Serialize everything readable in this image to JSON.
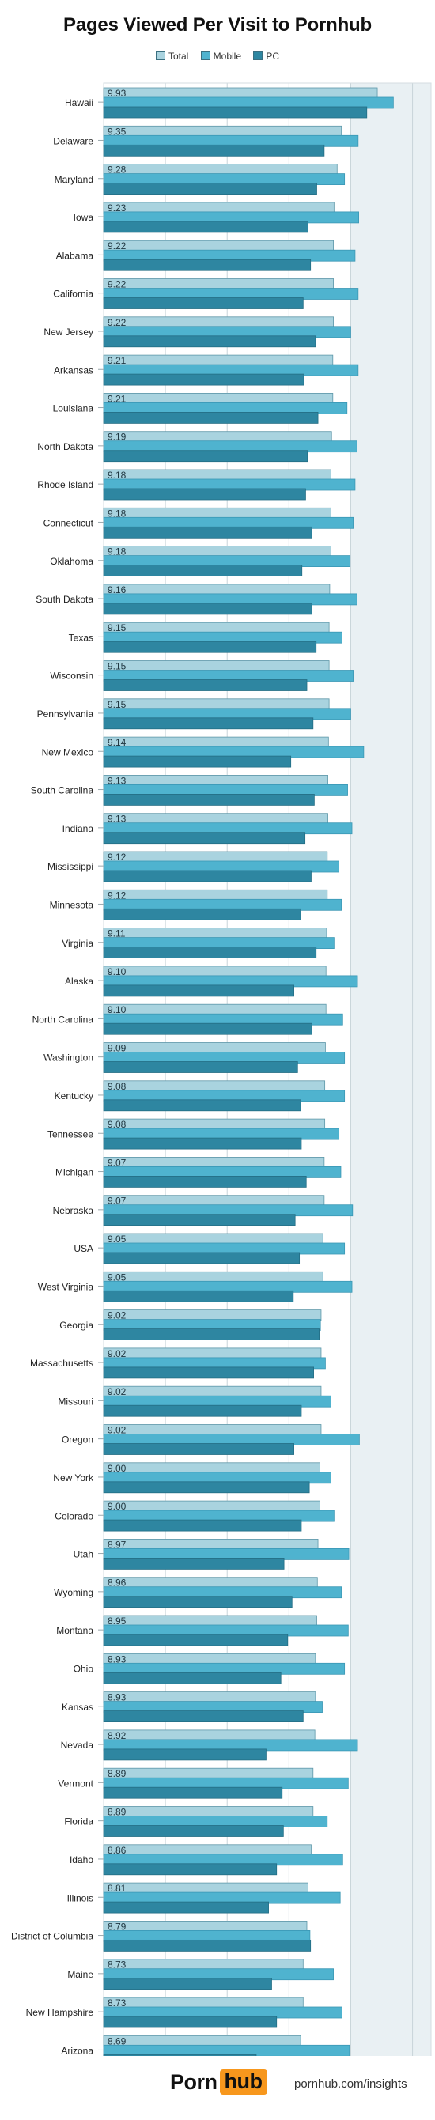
{
  "chart_data": {
    "type": "bar",
    "title": "Pages Viewed Per Visit to Pornhub",
    "orientation": "horizontal",
    "legend_position": "top-center",
    "grid": true,
    "series": [
      {
        "name": "Total",
        "color": "#a9d3df",
        "values": [
          9.93,
          9.35,
          9.28,
          9.23,
          9.22,
          9.22,
          9.22,
          9.21,
          9.21,
          9.19,
          9.18,
          9.18,
          9.18,
          9.16,
          9.15,
          9.15,
          9.15,
          9.14,
          9.13,
          9.13,
          9.12,
          9.12,
          9.11,
          9.1,
          9.1,
          9.09,
          9.08,
          9.08,
          9.07,
          9.07,
          9.05,
          9.05,
          9.02,
          9.02,
          9.02,
          9.02,
          9.0,
          9.0,
          8.97,
          8.96,
          8.95,
          8.93,
          8.93,
          8.92,
          8.89,
          8.89,
          8.86,
          8.81,
          8.79,
          8.73,
          8.73,
          8.69
        ]
      },
      {
        "name": "Mobile",
        "color": "#4fb3cf",
        "values": [
          10.19,
          9.62,
          9.4,
          9.63,
          9.57,
          9.62,
          9.5,
          9.62,
          9.44,
          9.6,
          9.57,
          9.54,
          9.49,
          9.6,
          9.36,
          9.54,
          9.5,
          9.71,
          9.45,
          9.52,
          9.31,
          9.35,
          9.23,
          9.61,
          9.37,
          9.4,
          9.4,
          9.31,
          9.34,
          9.53,
          9.4,
          9.52,
          9.01,
          9.09,
          9.18,
          9.64,
          9.18,
          9.23,
          9.47,
          9.35,
          9.46,
          9.4,
          9.04,
          9.61,
          9.46,
          9.12,
          9.37,
          9.33,
          8.84,
          9.22,
          9.36,
          9.48
        ]
      },
      {
        "name": "PC",
        "color": "#2e86a1",
        "values": [
          9.76,
          9.07,
          8.95,
          8.81,
          8.85,
          8.73,
          8.93,
          8.74,
          8.97,
          8.8,
          8.77,
          8.87,
          8.71,
          8.87,
          8.94,
          8.79,
          8.89,
          8.53,
          8.91,
          8.76,
          8.86,
          8.69,
          8.94,
          8.58,
          8.87,
          8.64,
          8.69,
          8.7,
          8.78,
          8.6,
          8.67,
          8.57,
          8.99,
          8.9,
          8.7,
          8.58,
          8.83,
          8.7,
          8.42,
          8.55,
          8.48,
          8.37,
          8.73,
          8.13,
          8.39,
          8.41,
          8.3,
          8.17,
          8.85,
          8.22,
          8.3,
          7.97
        ]
      }
    ],
    "categories": [
      "Hawaii",
      "Delaware",
      "Maryland",
      "Iowa",
      "Alabama",
      "California",
      "New Jersey",
      "Arkansas",
      "Louisiana",
      "North Dakota",
      "Rhode Island",
      "Connecticut",
      "Oklahoma",
      "South Dakota",
      "Texas",
      "Wisconsin",
      "Pennsylvania",
      "New Mexico",
      "South Carolina",
      "Indiana",
      "Mississippi",
      "Minnesota",
      "Virginia",
      "Alaska",
      "North Carolina",
      "Washington",
      "Kentucky",
      "Tennessee",
      "Michigan",
      "Nebraska",
      "USA",
      "West Virginia",
      "Georgia",
      "Massachusetts",
      "Missouri",
      "Oregon",
      "New York",
      "Colorado",
      "Utah",
      "Wyoming",
      "Montana",
      "Ohio",
      "Kansas",
      "Nevada",
      "Vermont",
      "Florida",
      "Idaho",
      "Illinois",
      "District of Columbia",
      "Maine",
      "New Hampshire",
      "Arizona"
    ],
    "total_labels": [
      "9.93",
      "9.35",
      "9.28",
      "9.23",
      "9.22",
      "9.22",
      "9.22",
      "9.21",
      "9.21",
      "9.19",
      "9.18",
      "9.18",
      "9.18",
      "9.16",
      "9.15",
      "9.15",
      "9.15",
      "9.14",
      "9.13",
      "9.13",
      "9.12",
      "9.12",
      "9.11",
      "9.10",
      "9.10",
      "9.09",
      "9.08",
      "9.08",
      "9.07",
      "9.07",
      "9.05",
      "9.05",
      "9.02",
      "9.02",
      "9.02",
      "9.02",
      "9.00",
      "9.00",
      "8.97",
      "8.96",
      "8.95",
      "8.93",
      "8.93",
      "8.92",
      "8.89",
      "8.89",
      "8.86",
      "8.81",
      "8.79",
      "8.73",
      "8.73",
      "8.69"
    ],
    "xlim": [
      5.5,
      10.8
    ],
    "gridlines": [
      6.5,
      7.5,
      8.5,
      9.5,
      10.5
    ],
    "shaded_from": 9.5,
    "colors": {
      "plot_bg": "#ffffff",
      "shaded_bg": "#e9f0f3",
      "grid": "#c9d4d9"
    }
  },
  "legend": {
    "items": [
      {
        "label": "Total",
        "color": "#a9d3df"
      },
      {
        "label": "Mobile",
        "color": "#4fb3cf"
      },
      {
        "label": "PC",
        "color": "#2e86a1"
      }
    ]
  },
  "footer": {
    "logo_part1": "Porn",
    "logo_part2": "hub",
    "url": "pornhub.com/insights",
    "accent_color": "#f7971d"
  }
}
